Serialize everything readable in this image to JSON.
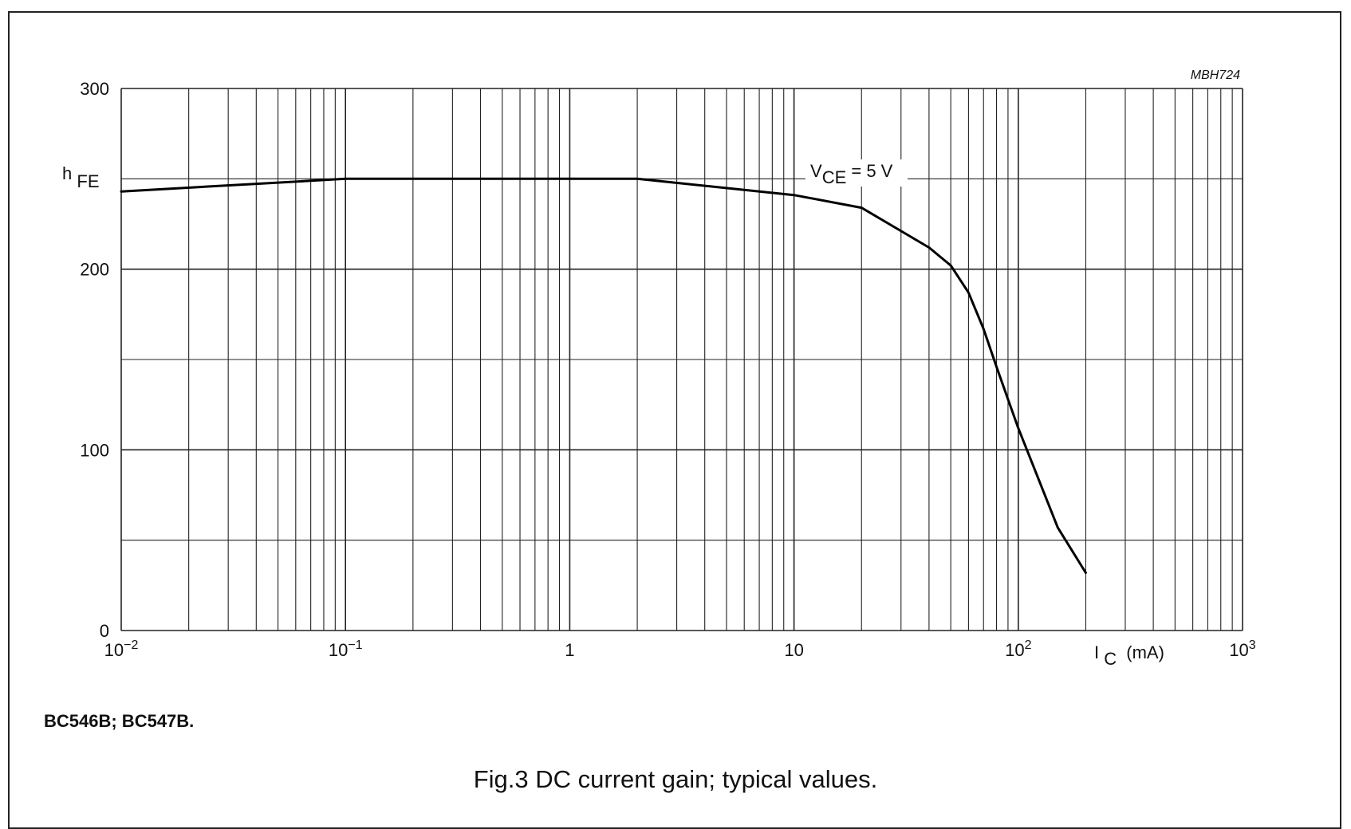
{
  "chart_data": {
    "type": "line",
    "ref_code": "MBH724",
    "y_axis": {
      "label_main": "h",
      "label_sub": "FE",
      "scale": "linear",
      "range": [
        0,
        300
      ],
      "ticks": [
        0,
        100,
        200,
        300
      ],
      "tick_labels": [
        "0",
        "100",
        "200",
        "300"
      ],
      "minor_gridlines": [
        50,
        150,
        250
      ]
    },
    "x_axis": {
      "label_main": "I",
      "label_sub": "C",
      "label_unit": "(mA)",
      "scale": "log",
      "range": [
        0.01,
        1000
      ],
      "ticks": [
        {
          "value": 0.01,
          "base": "10",
          "exp": "−2"
        },
        {
          "value": 0.1,
          "base": "10",
          "exp": "−1"
        },
        {
          "value": 1,
          "base": "1",
          "exp": ""
        },
        {
          "value": 10,
          "base": "10",
          "exp": ""
        },
        {
          "value": 100,
          "base": "10",
          "exp": "2"
        },
        {
          "value": 1000,
          "base": "10",
          "exp": "3"
        }
      ]
    },
    "grid": true,
    "series": [
      {
        "name_main": "V",
        "name_sub": "CE",
        "name_rest": " = 5 V",
        "x": [
          0.01,
          0.1,
          2,
          10,
          20,
          40,
          50,
          60,
          70,
          80,
          90,
          100,
          150,
          200
        ],
        "y": [
          243,
          250,
          250,
          241,
          234,
          212,
          202,
          187,
          167,
          146,
          128,
          112,
          57,
          32
        ]
      }
    ]
  },
  "device_label": "BC546B; BC547B.",
  "figure_caption": "Fig.3  DC current gain; typical values."
}
